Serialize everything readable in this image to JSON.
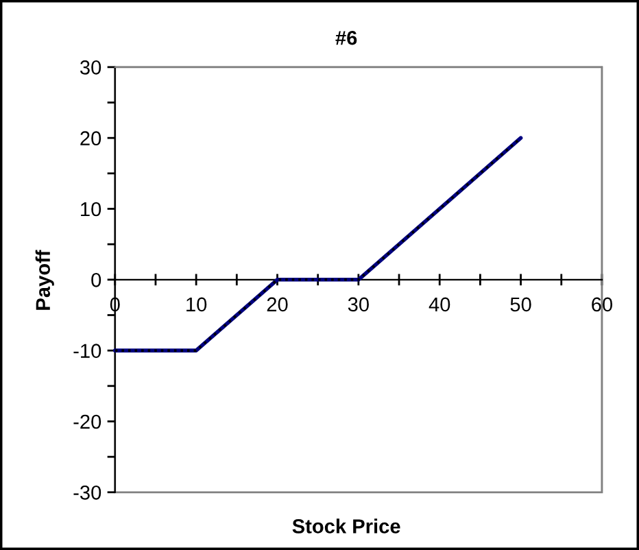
{
  "chart_data": {
    "type": "line",
    "title": "#6",
    "xlabel": "Stock Price",
    "ylabel": "Payoff",
    "x": [
      0,
      10,
      20,
      30,
      50
    ],
    "series": [
      {
        "color": "#000080",
        "values": [
          -10,
          -10,
          0,
          0,
          20
        ],
        "line_style": "solid"
      },
      {
        "color": "#000000",
        "values": [
          -10,
          -10,
          0,
          0,
          20
        ],
        "line_style": "dotted"
      }
    ],
    "xlim": [
      0,
      60
    ],
    "ylim": [
      -30,
      30
    ],
    "xticks": [
      0,
      {
        "value": 5,
        "label": null
      },
      10,
      {
        "value": 15,
        "label": null
      },
      20,
      {
        "value": 25,
        "label": null
      },
      30,
      {
        "value": 35,
        "label": null
      },
      40,
      {
        "value": 45,
        "label": null
      },
      50,
      {
        "value": 55,
        "label": null
      },
      60
    ],
    "yticks": [
      -30,
      {
        "value": -25,
        "label": null
      },
      -20,
      {
        "value": -15,
        "label": null
      },
      -10,
      {
        "value": -5,
        "label": null
      },
      0,
      {
        "value": 5,
        "label": null
      },
      10,
      {
        "value": 15,
        "label": null
      },
      20,
      {
        "value": 25,
        "label": null
      },
      30
    ],
    "grid": false
  }
}
